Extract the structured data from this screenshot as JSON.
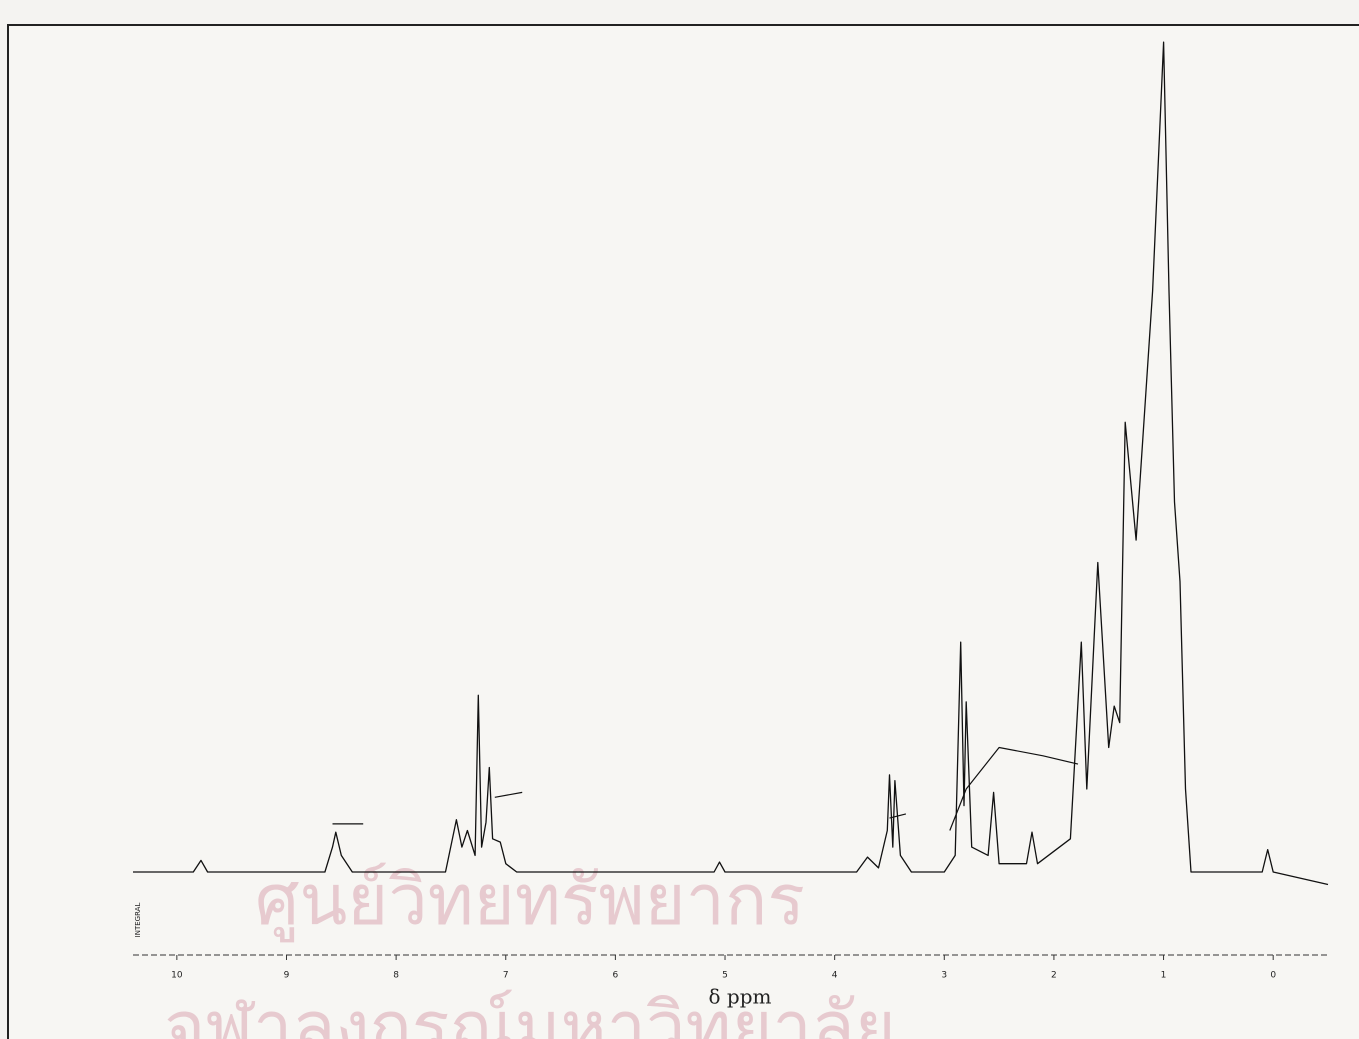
{
  "chart_data": {
    "type": "line",
    "x_label": "δ ppm",
    "side_label": "INTEGRAL",
    "watermark": [
      "ศูนย์วิทยทรัพยากร",
      "จุฬาลงกรณ์มหาวิทยาลัย"
    ],
    "x": [
      10.4,
      9.85,
      9.78,
      9.72,
      8.65,
      8.58,
      8.55,
      8.5,
      8.4,
      7.55,
      7.45,
      7.4,
      7.35,
      7.28,
      7.25,
      7.22,
      7.18,
      7.15,
      7.12,
      7.05,
      7.0,
      6.9,
      5.1,
      5.05,
      5.0,
      3.8,
      3.7,
      3.6,
      3.52,
      3.5,
      3.47,
      3.45,
      3.4,
      3.3,
      3.0,
      2.9,
      2.85,
      2.82,
      2.8,
      2.75,
      2.6,
      2.55,
      2.5,
      2.25,
      2.2,
      2.15,
      1.85,
      1.75,
      1.7,
      1.6,
      1.5,
      1.45,
      1.4,
      1.35,
      1.25,
      1.1,
      1.0,
      0.95,
      0.9,
      0.85,
      0.8,
      0.75,
      0.1,
      0.05,
      0.0,
      -0.5
    ],
    "values": [
      0,
      0,
      1.4,
      0,
      0,
      3,
      4.8,
      2,
      0,
      0,
      6.3,
      3,
      5,
      2,
      21.3,
      3,
      6,
      12.6,
      4,
      3.6,
      1,
      0,
      0,
      1.2,
      0,
      0,
      1.8,
      0.5,
      5,
      11.7,
      3,
      11,
      2,
      0,
      0,
      2,
      27.7,
      8,
      20.5,
      3,
      2,
      9.6,
      1,
      1,
      4.8,
      1,
      4,
      27.7,
      10,
      37.3,
      15,
      20,
      18,
      54.2,
      40,
      70,
      100,
      70,
      44.6,
      35,
      10,
      0,
      0,
      2.7,
      0,
      -1.5
    ],
    "color": "#111111",
    "integral": {
      "x": [
        8.58,
        8.3,
        8.0,
        7.1,
        6.85,
        6.0,
        3.5,
        3.35,
        3.2,
        2.95,
        2.8,
        2.5,
        2.1,
        1.78
      ],
      "values": [
        5.8,
        5.8,
        null,
        9,
        9.6,
        null,
        6.5,
        7,
        null,
        5,
        10,
        15,
        14,
        13
      ]
    },
    "xlim": [
      10.4,
      -0.5
    ],
    "ylim": [
      -10,
      104
    ],
    "xticks": [
      10,
      9,
      8,
      7,
      6,
      5,
      4,
      3,
      2,
      1,
      0
    ]
  }
}
